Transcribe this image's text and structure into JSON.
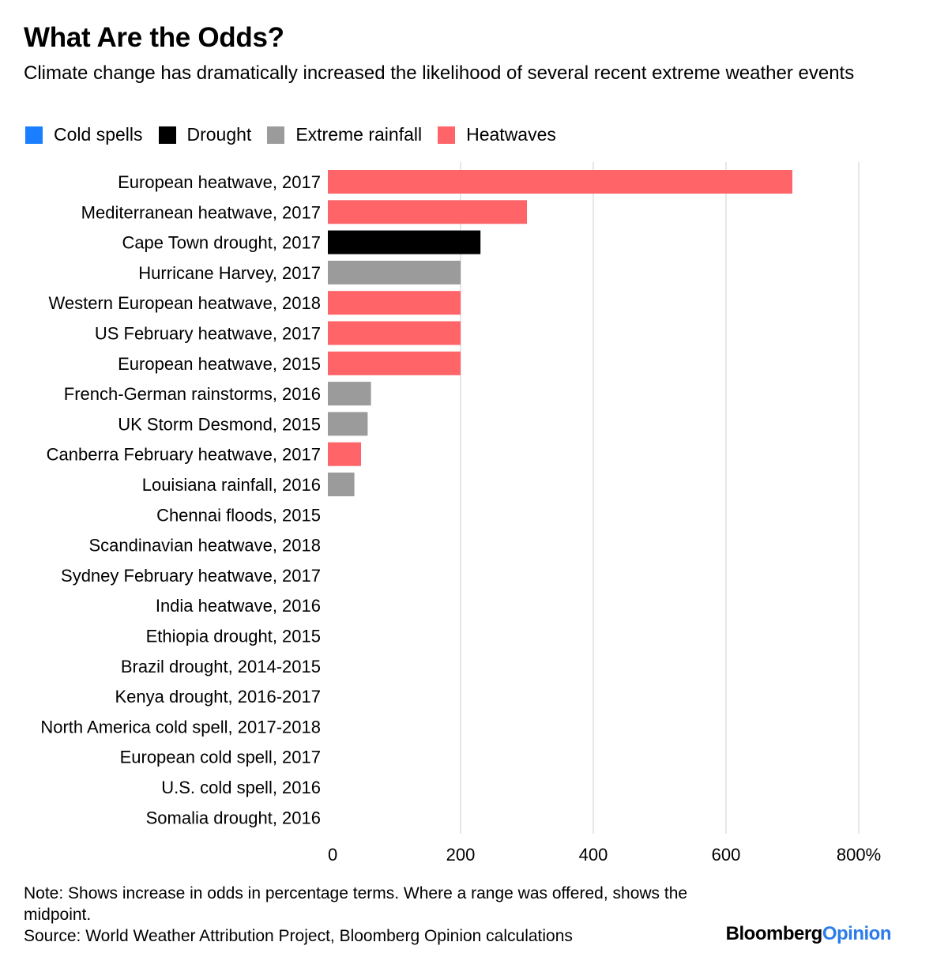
{
  "title": "What Are the Odds?",
  "subtitle": "Climate change has dramatically increased the likelihood of several recent extreme weather events",
  "legend": [
    {
      "label": "Cold spells",
      "color": "#1a7fff"
    },
    {
      "label": "Drought",
      "color": "#000000"
    },
    {
      "label": "Extreme rainfall",
      "color": "#9b9b9b"
    },
    {
      "label": "Heatwaves",
      "color": "#ff6469"
    }
  ],
  "chart_data": {
    "type": "bar",
    "orientation": "horizontal",
    "categories": [
      "European heatwave, 2017",
      "Mediterranean heatwave, 2017",
      "Cape Town drought, 2017",
      "Hurricane Harvey, 2017",
      "Western European heatwave, 2018",
      "US February heatwave, 2017",
      "European heatwave, 2015",
      "French-German rainstorms, 2016",
      "UK Storm Desmond, 2015",
      "Canberra February heatwave, 2017",
      "Louisiana rainfall, 2016",
      "Chennai floods, 2015",
      "Scandinavian heatwave, 2018",
      "Sydney February heatwave, 2017",
      "India heatwave, 2016",
      "Ethiopia drought, 2015",
      "Brazil drought, 2014-2015",
      "Kenya drought, 2016-2017",
      "North America cold spell, 2017-2018",
      "European cold spell, 2017",
      "U.S. cold spell, 2016",
      "Somalia drought, 2016"
    ],
    "values": [
      700,
      300,
      230,
      200,
      200,
      200,
      200,
      65,
      60,
      50,
      40,
      0,
      0,
      0,
      0,
      0,
      0,
      0,
      0,
      0,
      0,
      0
    ],
    "groups": [
      "Heatwaves",
      "Heatwaves",
      "Drought",
      "Extreme rainfall",
      "Heatwaves",
      "Heatwaves",
      "Heatwaves",
      "Extreme rainfall",
      "Extreme rainfall",
      "Heatwaves",
      "Extreme rainfall",
      "Extreme rainfall",
      "Heatwaves",
      "Heatwaves",
      "Heatwaves",
      "Drought",
      "Drought",
      "Drought",
      "Cold spells",
      "Cold spells",
      "Cold spells",
      "Drought"
    ],
    "xlim": [
      0,
      800
    ],
    "xticks": [
      "0",
      "200",
      "400",
      "600",
      "800%"
    ],
    "xtick_values": [
      0,
      200,
      400,
      600,
      800
    ],
    "grid": true
  },
  "note": "Note: Shows increase in odds in percentage terms. Where a range was offered, shows the midpoint.",
  "source": "Source: World Weather Attribution Project, Bloomberg Opinion calculations",
  "brand": {
    "part1": "Bloomberg",
    "part2": "Opinion"
  }
}
